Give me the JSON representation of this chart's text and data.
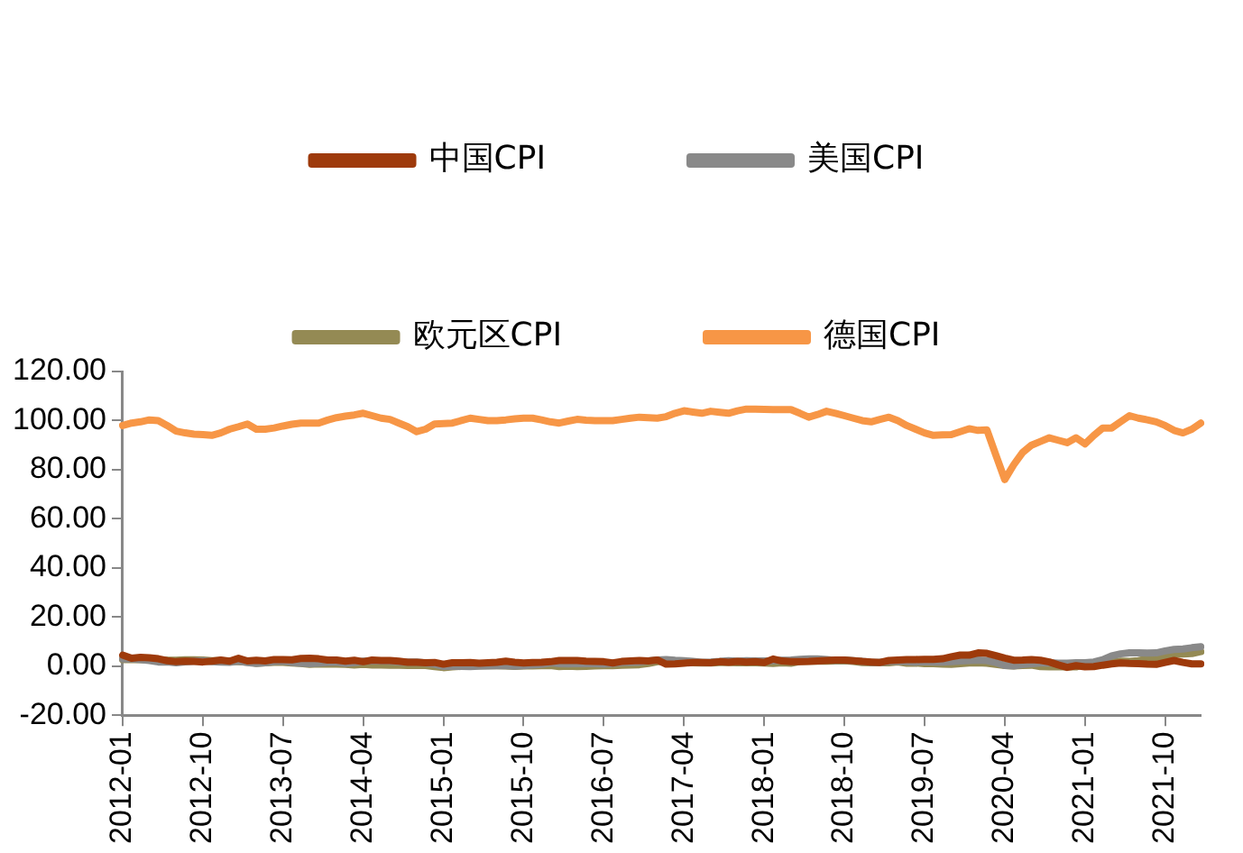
{
  "chart_data": {
    "type": "line",
    "categories": [
      "2012-01",
      null,
      null,
      null,
      null,
      null,
      null,
      null,
      null,
      "2012-10",
      null,
      null,
      null,
      null,
      null,
      null,
      null,
      null,
      "2013-07",
      null,
      null,
      null,
      null,
      null,
      null,
      null,
      null,
      "2014-04",
      null,
      null,
      null,
      null,
      null,
      null,
      null,
      null,
      "2015-01",
      null,
      null,
      null,
      null,
      null,
      null,
      null,
      null,
      "2015-10",
      null,
      null,
      null,
      null,
      null,
      null,
      null,
      null,
      "2016-07",
      null,
      null,
      null,
      null,
      null,
      null,
      null,
      null,
      "2017-04",
      null,
      null,
      null,
      null,
      null,
      null,
      null,
      null,
      "2018-01",
      null,
      null,
      null,
      null,
      null,
      null,
      null,
      null,
      "2018-10",
      null,
      null,
      null,
      null,
      null,
      null,
      null,
      null,
      "2019-07",
      null,
      null,
      null,
      null,
      null,
      null,
      null,
      null,
      "2020-04",
      null,
      null,
      null,
      null,
      null,
      null,
      null,
      null,
      "2021-01",
      null,
      null,
      null,
      null,
      null,
      null,
      null,
      null,
      "2021-10",
      null,
      null,
      null,
      null
    ],
    "series": [
      {
        "name": "中国CPI",
        "color": "#9e3a0b",
        "values": [
          4.5,
          3.2,
          3.6,
          3.4,
          3.0,
          2.2,
          1.8,
          2.0,
          1.9,
          1.7,
          2.0,
          2.5,
          2.0,
          3.2,
          2.1,
          2.4,
          2.1,
          2.7,
          2.7,
          2.6,
          3.1,
          3.2,
          3.0,
          2.5,
          2.5,
          2.0,
          2.4,
          1.8,
          2.5,
          2.3,
          2.3,
          2.0,
          1.6,
          1.6,
          1.4,
          1.5,
          0.8,
          1.4,
          1.4,
          1.5,
          1.2,
          1.4,
          1.6,
          2.0,
          1.6,
          1.3,
          1.5,
          1.6,
          1.8,
          2.3,
          2.3,
          2.3,
          2.0,
          1.9,
          1.8,
          1.3,
          1.9,
          2.1,
          2.3,
          2.1,
          2.5,
          0.8,
          0.9,
          1.2,
          1.5,
          1.5,
          1.4,
          1.8,
          1.6,
          1.9,
          1.7,
          1.8,
          1.5,
          2.9,
          2.1,
          1.8,
          1.8,
          1.9,
          2.1,
          2.3,
          2.5,
          2.5,
          2.2,
          1.9,
          1.7,
          1.5,
          2.3,
          2.5,
          2.7,
          2.7,
          2.8,
          2.8,
          3.0,
          3.8,
          4.5,
          4.5,
          5.4,
          5.2,
          4.3,
          3.3,
          2.4,
          2.5,
          2.7,
          2.4,
          1.7,
          0.5,
          -0.5,
          0.2,
          -0.3,
          -0.2,
          0.4,
          0.9,
          1.3,
          1.1,
          1.0,
          0.8,
          0.7,
          1.5,
          2.3,
          1.5,
          0.9,
          0.9
        ]
      },
      {
        "name": "美国CPI",
        "color": "#898989",
        "values": [
          2.9,
          2.9,
          2.7,
          2.3,
          1.7,
          1.7,
          1.4,
          1.7,
          2.0,
          2.2,
          1.8,
          1.7,
          1.6,
          2.0,
          1.5,
          1.1,
          1.4,
          1.8,
          2.0,
          1.5,
          1.2,
          1.0,
          1.2,
          1.5,
          1.6,
          1.1,
          1.5,
          2.0,
          2.1,
          2.1,
          2.0,
          1.7,
          1.7,
          1.7,
          1.3,
          0.8,
          -0.1,
          0.0,
          -0.1,
          -0.2,
          0.0,
          0.1,
          0.2,
          0.2,
          0.0,
          0.2,
          0.5,
          0.7,
          1.4,
          1.0,
          0.9,
          1.1,
          1.0,
          1.0,
          0.8,
          1.1,
          1.5,
          1.6,
          1.7,
          2.1,
          2.5,
          2.7,
          2.4,
          2.2,
          1.9,
          1.6,
          1.7,
          1.9,
          2.2,
          2.0,
          2.2,
          2.1,
          2.1,
          2.2,
          2.4,
          2.5,
          2.8,
          2.9,
          2.9,
          2.7,
          2.3,
          2.5,
          2.2,
          1.9,
          1.6,
          1.5,
          1.9,
          2.0,
          1.8,
          1.6,
          1.8,
          1.7,
          1.7,
          1.8,
          2.1,
          2.3,
          2.5,
          2.3,
          1.5,
          0.3,
          0.1,
          0.6,
          1.0,
          1.3,
          1.4,
          1.2,
          1.2,
          1.4,
          1.4,
          1.7,
          2.6,
          4.2,
          5.0,
          5.4,
          5.4,
          5.3,
          5.4,
          6.2,
          6.8,
          7.0,
          7.5,
          7.9
        ]
      },
      {
        "name": "欧元区CPI",
        "color": "#948a54",
        "values": [
          2.7,
          2.7,
          2.7,
          2.6,
          2.4,
          2.4,
          2.4,
          2.6,
          2.6,
          2.5,
          2.2,
          2.2,
          2.0,
          1.8,
          1.7,
          1.2,
          1.4,
          1.6,
          1.6,
          1.3,
          1.1,
          0.7,
          0.9,
          0.8,
          0.8,
          0.7,
          0.5,
          0.7,
          0.5,
          0.5,
          0.4,
          0.4,
          0.3,
          0.4,
          0.3,
          -0.2,
          -0.6,
          -0.3,
          -0.1,
          0.0,
          0.3,
          0.2,
          0.2,
          0.1,
          -0.1,
          0.1,
          0.1,
          0.2,
          0.3,
          -0.2,
          0.0,
          -0.2,
          -0.1,
          0.1,
          0.2,
          0.2,
          0.4,
          0.5,
          0.6,
          1.1,
          1.8,
          2.0,
          1.5,
          1.9,
          1.4,
          1.3,
          1.3,
          1.5,
          1.5,
          1.4,
          1.5,
          1.4,
          1.3,
          1.1,
          1.4,
          1.2,
          1.9,
          2.0,
          2.1,
          2.0,
          2.1,
          2.2,
          1.9,
          1.5,
          1.4,
          1.5,
          1.4,
          1.7,
          1.2,
          1.3,
          1.0,
          1.0,
          0.8,
          0.7,
          1.0,
          1.3,
          1.4,
          1.2,
          0.7,
          0.3,
          0.1,
          0.3,
          0.4,
          -0.2,
          -0.3,
          -0.3,
          -0.3,
          -0.3,
          0.9,
          0.9,
          1.3,
          1.6,
          2.0,
          1.9,
          2.2,
          3.0,
          3.4,
          4.1,
          4.9,
          5.0,
          5.1,
          5.9
        ]
      },
      {
        "name": "德国CPI",
        "color": "#f79646",
        "values": [
          98,
          99,
          99.5,
          100.3,
          100,
          98,
          95.7,
          95,
          94.5,
          94.3,
          94,
          95,
          96.5,
          97.5,
          98.6,
          96.5,
          96.5,
          97,
          97.8,
          98.5,
          99,
          99,
          99,
          100.2,
          101.2,
          101.8,
          102.3,
          103,
          102,
          101,
          100.5,
          99,
          97.5,
          95.5,
          96.5,
          98.6,
          98.8,
          99,
          100,
          101,
          100.5,
          100,
          100,
          100.3,
          100.7,
          101,
          101,
          100.3,
          99.5,
          99,
          99.8,
          100.5,
          100.2,
          100,
          100,
          100,
          100.5,
          101,
          101.4,
          101.2,
          101,
          101.6,
          103,
          104,
          103.5,
          103,
          103.8,
          103.4,
          103,
          104,
          104.7,
          104.7,
          104.6,
          104.5,
          104.5,
          104.5,
          103,
          101.4,
          102.5,
          103.8,
          103,
          102,
          101,
          100,
          99.5,
          100.5,
          101.4,
          100,
          98,
          96.5,
          95,
          94,
          94.2,
          94.3,
          95.5,
          96.7,
          96,
          96.2,
          86,
          76,
          82,
          87,
          90,
          91.5,
          93,
          92,
          91,
          93,
          90.5,
          94,
          97,
          97,
          99.5,
          102,
          101,
          100.3,
          99.5,
          98,
          96,
          95,
          96.5,
          99
        ]
      }
    ],
    "ylim": [
      -20,
      120
    ],
    "yticks": [
      {
        "value": -20,
        "label": "-20.00"
      },
      {
        "value": 0,
        "label": "0.00"
      },
      {
        "value": 20,
        "label": "20.00"
      },
      {
        "value": 40,
        "label": "40.00"
      },
      {
        "value": 60,
        "label": "60.00"
      },
      {
        "value": 80,
        "label": "80.00"
      },
      {
        "value": 100,
        "label": "100.00"
      },
      {
        "value": 120,
        "label": "120.00"
      }
    ],
    "grid": false,
    "legend": "top",
    "marker": "none",
    "line_style": "solid"
  }
}
